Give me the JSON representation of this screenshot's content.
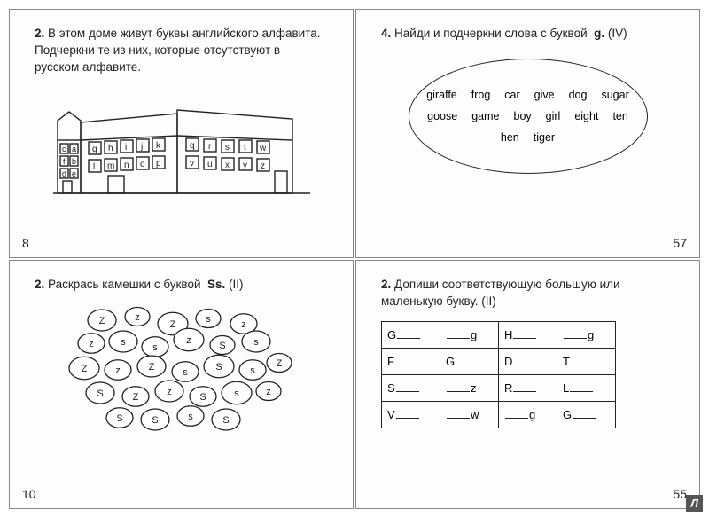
{
  "panels": {
    "tl": {
      "num": "2.",
      "text": "В этом доме живут буквы английского алфавита. Подчеркни те из них, которые отсутствуют в русском алфавите.",
      "page": "8",
      "house_letters": {
        "left": [
          "c",
          "a",
          "f",
          "b",
          "d",
          "e"
        ],
        "mid": [
          "g",
          "h",
          "i",
          "j",
          "k",
          "l",
          "m",
          "n",
          "o",
          "p"
        ],
        "right": [
          "q",
          "r",
          "s",
          "t",
          "w",
          "v",
          "u",
          "x",
          "y",
          "z"
        ]
      }
    },
    "tr": {
      "num": "4.",
      "text": "Найди и подчеркни слова с буквой",
      "bold": "g.",
      "suffix": "(IV)",
      "page": "57",
      "words": [
        "giraffe",
        "frog",
        "car",
        "give",
        "dog",
        "sugar",
        "goose",
        "game",
        "boy",
        "girl",
        "eight",
        "ten",
        "hen",
        "tiger"
      ]
    },
    "bl": {
      "num": "2.",
      "text": "Раскрась камешки с буквой",
      "bold": "Ss.",
      "suffix": "(II)",
      "page": "10",
      "pebbles": [
        "Z",
        "z",
        "Z",
        "s",
        "z",
        "z",
        "s",
        "s",
        "z",
        "S",
        "s",
        "Z",
        "z",
        "Z",
        "s",
        "S",
        "s",
        "Z",
        "S",
        "Z",
        "z",
        "S",
        "s",
        "z",
        "S",
        "S",
        "s",
        "S"
      ]
    },
    "br": {
      "num": "2.",
      "text": "Допиши соответствующую большую или маленькую букву. (II)",
      "page": "55",
      "table": [
        [
          {
            "l": "G",
            "r": ""
          },
          {
            "l": "",
            "r": "g"
          },
          {
            "l": "H",
            "r": ""
          },
          {
            "l": "",
            "r": "g"
          }
        ],
        [
          {
            "l": "F",
            "r": ""
          },
          {
            "l": "G",
            "r": ""
          },
          {
            "l": "D",
            "r": ""
          },
          {
            "l": "T",
            "r": ""
          }
        ],
        [
          {
            "l": "S",
            "r": ""
          },
          {
            "l": "",
            "r": "z"
          },
          {
            "l": "R",
            "r": ""
          },
          {
            "l": "L",
            "r": ""
          }
        ],
        [
          {
            "l": "V",
            "r": ""
          },
          {
            "l": "",
            "r": "w"
          },
          {
            "l": "",
            "r": "g"
          },
          {
            "l": "G",
            "r": ""
          }
        ]
      ]
    }
  },
  "colors": {
    "stroke": "#222222",
    "bg": "#ffffff"
  }
}
